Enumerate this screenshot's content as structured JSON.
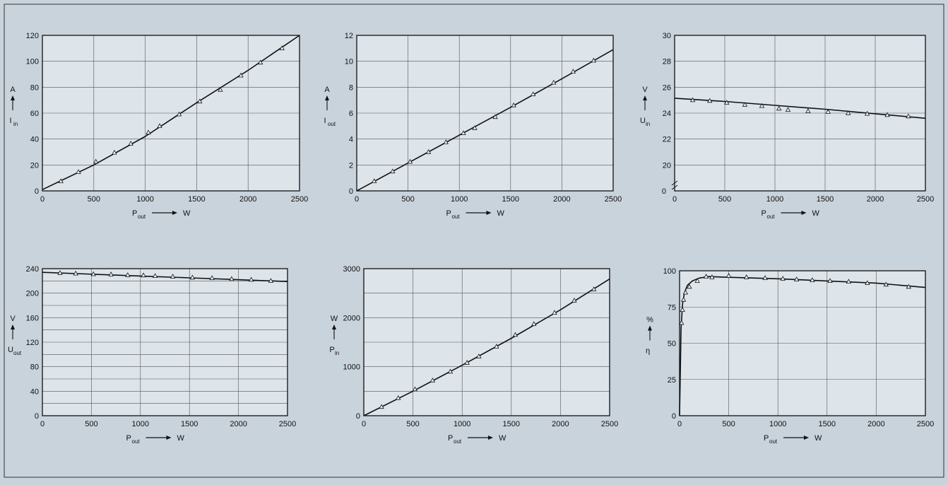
{
  "chart_data": [
    {
      "type": "line",
      "xlabel_main": "P",
      "xlabel_sub": "out",
      "xunit": "W",
      "ylabel_main": "I",
      "ylabel_sub": "in",
      "yunit": "A",
      "xlim": [
        0,
        2500
      ],
      "ylim": [
        0,
        120
      ],
      "xticks": [
        0,
        500,
        1000,
        1500,
        2000,
        2500
      ],
      "yticks": [
        0,
        20,
        40,
        60,
        80,
        100,
        120
      ],
      "grid": true,
      "curve": [
        [
          0,
          1
        ],
        [
          500,
          20
        ],
        [
          1000,
          42
        ],
        [
          1500,
          68
        ],
        [
          2000,
          93
        ],
        [
          2500,
          120
        ]
      ],
      "points": [
        [
          180,
          7.5
        ],
        [
          350,
          14.5
        ],
        [
          520,
          22.5
        ],
        [
          700,
          29.5
        ],
        [
          860,
          36.5
        ],
        [
          1030,
          45
        ],
        [
          1140,
          50
        ],
        [
          1330,
          59
        ],
        [
          1530,
          69
        ],
        [
          1730,
          78
        ],
        [
          1930,
          89
        ],
        [
          2120,
          99
        ],
        [
          2330,
          110
        ]
      ]
    },
    {
      "type": "line",
      "xlabel_main": "P",
      "xlabel_sub": "out",
      "xunit": "W",
      "ylabel_main": "I",
      "ylabel_sub": "out",
      "yunit": "A",
      "xlim": [
        0,
        2500
      ],
      "ylim": [
        0,
        12
      ],
      "xticks": [
        0,
        500,
        1000,
        1500,
        2000,
        2500
      ],
      "yticks": [
        0,
        2,
        4,
        6,
        8,
        10,
        12
      ],
      "grid": true,
      "curve": [
        [
          0,
          0
        ],
        [
          500,
          2.15
        ],
        [
          1000,
          4.3
        ],
        [
          1500,
          6.45
        ],
        [
          2000,
          8.65
        ],
        [
          2500,
          10.9
        ]
      ],
      "points": [
        [
          170,
          0.75
        ],
        [
          350,
          1.5
        ],
        [
          520,
          2.25
        ],
        [
          700,
          3.0
        ],
        [
          870,
          3.75
        ],
        [
          1040,
          4.45
        ],
        [
          1150,
          4.85
        ],
        [
          1350,
          5.7
        ],
        [
          1530,
          6.6
        ],
        [
          1720,
          7.45
        ],
        [
          1920,
          8.35
        ],
        [
          2110,
          9.2
        ],
        [
          2310,
          10.05
        ]
      ]
    },
    {
      "type": "line",
      "xlabel_main": "P",
      "xlabel_sub": "out",
      "xunit": "W",
      "ylabel_main": "U",
      "ylabel_sub": "in",
      "yunit": "V",
      "xlim": [
        0,
        2500
      ],
      "ylim": [
        18,
        30
      ],
      "axis_break": true,
      "xticks": [
        0,
        500,
        1000,
        1500,
        2000,
        2500
      ],
      "yticks": [
        20,
        22,
        24,
        26,
        28,
        30
      ],
      "ytick_zero_label": "0",
      "grid": true,
      "curve": [
        [
          0,
          25.15
        ],
        [
          500,
          24.9
        ],
        [
          1000,
          24.6
        ],
        [
          1500,
          24.3
        ],
        [
          2000,
          23.95
        ],
        [
          2500,
          23.6
        ]
      ],
      "points": [
        [
          180,
          25.0
        ],
        [
          350,
          24.95
        ],
        [
          520,
          24.8
        ],
        [
          700,
          24.65
        ],
        [
          870,
          24.55
        ],
        [
          1040,
          24.35
        ],
        [
          1130,
          24.25
        ],
        [
          1330,
          24.15
        ],
        [
          1530,
          24.1
        ],
        [
          1730,
          24.0
        ],
        [
          1920,
          23.95
        ],
        [
          2120,
          23.85
        ],
        [
          2330,
          23.75
        ]
      ]
    },
    {
      "type": "line",
      "xlabel_main": "P",
      "xlabel_sub": "out",
      "xunit": "W",
      "ylabel_main": "U",
      "ylabel_sub": "out",
      "yunit": "V",
      "xlim": [
        0,
        2500
      ],
      "ylim": [
        0,
        240
      ],
      "xticks": [
        0,
        500,
        1000,
        1500,
        2000,
        2500
      ],
      "yticks": [
        0,
        20,
        40,
        60,
        80,
        100,
        120,
        140,
        160,
        180,
        200,
        220,
        240
      ],
      "ytick_labels_shown": [
        0,
        40,
        80,
        120,
        160,
        200,
        240
      ],
      "grid": true,
      "curve": [
        [
          0,
          234
        ],
        [
          500,
          231
        ],
        [
          1000,
          228
        ],
        [
          1500,
          225
        ],
        [
          2000,
          222
        ],
        [
          2500,
          219
        ]
      ],
      "points": [
        [
          180,
          233
        ],
        [
          340,
          232
        ],
        [
          520,
          231
        ],
        [
          700,
          230.5
        ],
        [
          870,
          229.5
        ],
        [
          1030,
          229
        ],
        [
          1150,
          228
        ],
        [
          1330,
          227
        ],
        [
          1530,
          225.5
        ],
        [
          1730,
          224.5
        ],
        [
          1930,
          223
        ],
        [
          2130,
          222
        ],
        [
          2330,
          220
        ]
      ]
    },
    {
      "type": "line",
      "xlabel_main": "P",
      "xlabel_sub": "out",
      "xunit": "W",
      "ylabel_main": "P",
      "ylabel_sub": "in",
      "yunit": "W",
      "xlim": [
        0,
        2500
      ],
      "ylim": [
        0,
        3000
      ],
      "xticks": [
        0,
        500,
        1000,
        1500,
        2000,
        2500
      ],
      "yticks": [
        0,
        500,
        1000,
        1500,
        2000,
        2500,
        3000
      ],
      "ytick_labels_shown": [
        0,
        1000,
        2000,
        3000
      ],
      "grid": true,
      "curve": [
        [
          0,
          0
        ],
        [
          500,
          500
        ],
        [
          1000,
          1030
        ],
        [
          1500,
          1580
        ],
        [
          2000,
          2160
        ],
        [
          2500,
          2790
        ]
      ],
      "points": [
        [
          180,
          180
        ],
        [
          350,
          360
        ],
        [
          520,
          540
        ],
        [
          700,
          720
        ],
        [
          880,
          900
        ],
        [
          1050,
          1080
        ],
        [
          1170,
          1210
        ],
        [
          1350,
          1410
        ],
        [
          1540,
          1650
        ],
        [
          1730,
          1870
        ],
        [
          1940,
          2100
        ],
        [
          2140,
          2350
        ],
        [
          2340,
          2580
        ]
      ]
    },
    {
      "type": "line",
      "xlabel_main": "P",
      "xlabel_sub": "out",
      "xunit": "W",
      "ylabel_main": "η",
      "ylabel_sub": "",
      "yunit": "%",
      "xlim": [
        0,
        2500
      ],
      "ylim": [
        0,
        100
      ],
      "xticks": [
        0,
        500,
        1000,
        1500,
        2000,
        2500
      ],
      "yticks": [
        0,
        25,
        50,
        75,
        100
      ],
      "grid": true,
      "curve": [
        [
          0,
          0
        ],
        [
          15,
          60
        ],
        [
          30,
          77
        ],
        [
          50,
          85
        ],
        [
          80,
          90
        ],
        [
          130,
          93
        ],
        [
          200,
          95
        ],
        [
          300,
          96
        ],
        [
          500,
          95.5
        ],
        [
          1000,
          94.5
        ],
        [
          1500,
          93
        ],
        [
          2000,
          91.5
        ],
        [
          2500,
          88.5
        ]
      ],
      "points": [
        [
          20,
          64
        ],
        [
          30,
          73
        ],
        [
          40,
          80
        ],
        [
          60,
          85
        ],
        [
          100,
          89
        ],
        [
          180,
          93
        ],
        [
          270,
          96
        ],
        [
          330,
          95.5
        ],
        [
          500,
          96.5
        ],
        [
          680,
          95.5
        ],
        [
          870,
          95
        ],
        [
          1050,
          94.5
        ],
        [
          1190,
          94
        ],
        [
          1350,
          93.5
        ],
        [
          1530,
          93
        ],
        [
          1720,
          92.5
        ],
        [
          1910,
          91.5
        ],
        [
          2100,
          90.5
        ],
        [
          2330,
          89
        ]
      ]
    }
  ]
}
